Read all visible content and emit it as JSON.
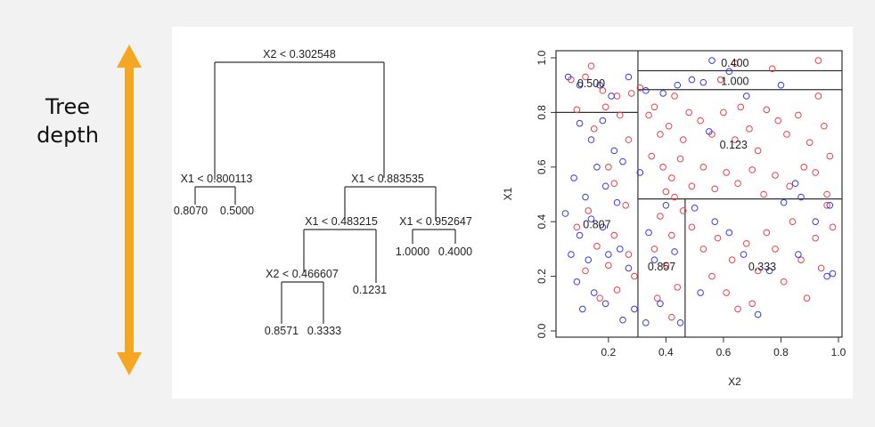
{
  "side_label": {
    "line1": "Tree",
    "line2": "depth"
  },
  "colors": {
    "arrow": "#f5a623",
    "class_red": "#e8414a",
    "class_blue": "#3b3bdc",
    "lines": "#333333"
  },
  "tree": {
    "nodes": [
      {
        "id": "root",
        "label": "X2 < 0.302548"
      },
      {
        "id": "left",
        "label": "X1 < 0.800113"
      },
      {
        "id": "right",
        "label": "X1 < 0.883535"
      },
      {
        "id": "rl",
        "label": "X1 < 0.483215"
      },
      {
        "id": "rr",
        "label": "X1 < 0.952647"
      },
      {
        "id": "rll",
        "label": "X2 < 0.466607"
      }
    ],
    "leaves": [
      {
        "id": "leaf-a",
        "label": "0.8070"
      },
      {
        "id": "leaf-b",
        "label": "0.5000"
      },
      {
        "id": "leaf-c",
        "label": "1.0000"
      },
      {
        "id": "leaf-d",
        "label": "0.4000"
      },
      {
        "id": "leaf-e",
        "label": "0.1231"
      },
      {
        "id": "leaf-f",
        "label": "0.8571"
      },
      {
        "id": "leaf-g",
        "label": "0.3333"
      }
    ]
  },
  "chart_data": {
    "type": "scatter",
    "xlabel": "X2",
    "ylabel": "X1",
    "xlim": [
      0.03,
      1.0
    ],
    "ylim": [
      0.0,
      1.0
    ],
    "x_ticks": [
      "0.2",
      "0.4",
      "0.6",
      "0.8",
      "1.0"
    ],
    "x_tick_values": [
      0.2,
      0.4,
      0.6,
      0.8,
      1.0
    ],
    "y_ticks": [
      "0.0",
      "0.2",
      "0.4",
      "0.6",
      "0.8",
      "1.0"
    ],
    "y_tick_values": [
      0.0,
      0.2,
      0.4,
      0.6,
      0.8,
      1.0
    ],
    "partitions": {
      "vertical": [
        {
          "x": 0.302548,
          "y0": 0.0,
          "y1": 1.0
        },
        {
          "x": 0.466607,
          "y0": 0.0,
          "y1": 0.483215
        }
      ],
      "horizontal": [
        {
          "y": 0.800113,
          "x0": 0.03,
          "x1": 0.302548
        },
        {
          "y": 0.483215,
          "x0": 0.302548,
          "x1": 1.0
        },
        {
          "y": 0.883535,
          "x0": 0.302548,
          "x1": 1.0
        },
        {
          "y": 0.952647,
          "x0": 0.302548,
          "x1": 1.0
        }
      ]
    },
    "region_labels": [
      {
        "text": "0.500",
        "x": 0.14,
        "y": 0.905
      },
      {
        "text": "0.400",
        "x": 0.64,
        "y": 0.98
      },
      {
        "text": "1.000",
        "x": 0.64,
        "y": 0.913
      },
      {
        "text": "0.123",
        "x": 0.635,
        "y": 0.68
      },
      {
        "text": "0.807",
        "x": 0.16,
        "y": 0.39
      },
      {
        "text": "0.857",
        "x": 0.385,
        "y": 0.235
      },
      {
        "text": "0.333",
        "x": 0.735,
        "y": 0.235
      }
    ],
    "series": [
      {
        "color": "red",
        "points": [
          [
            0.07,
            0.92
          ],
          [
            0.12,
            0.93
          ],
          [
            0.14,
            0.97
          ],
          [
            0.18,
            0.88
          ],
          [
            0.23,
            0.86
          ],
          [
            0.28,
            0.87
          ],
          [
            0.31,
            0.89
          ],
          [
            0.09,
            0.81
          ],
          [
            0.15,
            0.74
          ],
          [
            0.19,
            0.82
          ],
          [
            0.24,
            0.79
          ],
          [
            0.27,
            0.7
          ],
          [
            0.2,
            0.6
          ],
          [
            0.22,
            0.54
          ],
          [
            0.26,
            0.46
          ],
          [
            0.13,
            0.44
          ],
          [
            0.09,
            0.38
          ],
          [
            0.16,
            0.31
          ],
          [
            0.22,
            0.35
          ],
          [
            0.27,
            0.28
          ],
          [
            0.29,
            0.2
          ],
          [
            0.23,
            0.15
          ],
          [
            0.17,
            0.12
          ],
          [
            0.12,
            0.22
          ],
          [
            0.2,
            0.24
          ],
          [
            0.34,
            0.79
          ],
          [
            0.36,
            0.82
          ],
          [
            0.38,
            0.72
          ],
          [
            0.41,
            0.75
          ],
          [
            0.43,
            0.86
          ],
          [
            0.46,
            0.7
          ],
          [
            0.48,
            0.8
          ],
          [
            0.52,
            0.77
          ],
          [
            0.56,
            0.72
          ],
          [
            0.6,
            0.8
          ],
          [
            0.64,
            0.7
          ],
          [
            0.66,
            0.82
          ],
          [
            0.69,
            0.74
          ],
          [
            0.72,
            0.66
          ],
          [
            0.75,
            0.81
          ],
          [
            0.79,
            0.77
          ],
          [
            0.82,
            0.72
          ],
          [
            0.86,
            0.79
          ],
          [
            0.9,
            0.69
          ],
          [
            0.93,
            0.86
          ],
          [
            0.95,
            0.75
          ],
          [
            0.97,
            0.64
          ],
          [
            0.35,
            0.64
          ],
          [
            0.39,
            0.6
          ],
          [
            0.42,
            0.56
          ],
          [
            0.45,
            0.63
          ],
          [
            0.49,
            0.53
          ],
          [
            0.53,
            0.6
          ],
          [
            0.57,
            0.52
          ],
          [
            0.61,
            0.58
          ],
          [
            0.65,
            0.54
          ],
          [
            0.7,
            0.59
          ],
          [
            0.74,
            0.5
          ],
          [
            0.78,
            0.57
          ],
          [
            0.83,
            0.53
          ],
          [
            0.88,
            0.6
          ],
          [
            0.92,
            0.58
          ],
          [
            0.96,
            0.5
          ],
          [
            0.4,
            0.51
          ],
          [
            0.43,
            0.49
          ],
          [
            0.46,
            0.44
          ],
          [
            0.38,
            0.42
          ],
          [
            0.42,
            0.35
          ],
          [
            0.36,
            0.3
          ],
          [
            0.4,
            0.24
          ],
          [
            0.44,
            0.16
          ],
          [
            0.37,
            0.12
          ],
          [
            0.42,
            0.05
          ],
          [
            0.49,
            0.38
          ],
          [
            0.53,
            0.3
          ],
          [
            0.56,
            0.2
          ],
          [
            0.58,
            0.34
          ],
          [
            0.61,
            0.14
          ],
          [
            0.63,
            0.26
          ],
          [
            0.65,
            0.08
          ],
          [
            0.68,
            0.32
          ],
          [
            0.7,
            0.1
          ],
          [
            0.72,
            0.22
          ],
          [
            0.75,
            0.36
          ],
          [
            0.78,
            0.3
          ],
          [
            0.81,
            0.18
          ],
          [
            0.84,
            0.4
          ],
          [
            0.87,
            0.26
          ],
          [
            0.89,
            0.12
          ],
          [
            0.92,
            0.34
          ],
          [
            0.94,
            0.23
          ],
          [
            0.96,
            0.46
          ],
          [
            0.98,
            0.38
          ],
          [
            0.93,
            0.99
          ],
          [
            0.64,
            0.98
          ],
          [
            0.77,
            0.96
          ],
          [
            0.59,
            0.92
          ]
        ]
      },
      {
        "color": "blue",
        "points": [
          [
            0.06,
            0.93
          ],
          [
            0.1,
            0.9
          ],
          [
            0.17,
            0.9
          ],
          [
            0.21,
            0.86
          ],
          [
            0.27,
            0.93
          ],
          [
            0.1,
            0.76
          ],
          [
            0.14,
            0.7
          ],
          [
            0.18,
            0.77
          ],
          [
            0.22,
            0.66
          ],
          [
            0.25,
            0.62
          ],
          [
            0.08,
            0.56
          ],
          [
            0.12,
            0.49
          ],
          [
            0.16,
            0.6
          ],
          [
            0.19,
            0.53
          ],
          [
            0.23,
            0.47
          ],
          [
            0.05,
            0.43
          ],
          [
            0.1,
            0.35
          ],
          [
            0.14,
            0.41
          ],
          [
            0.18,
            0.38
          ],
          [
            0.2,
            0.28
          ],
          [
            0.24,
            0.3
          ],
          [
            0.27,
            0.23
          ],
          [
            0.13,
            0.26
          ],
          [
            0.09,
            0.18
          ],
          [
            0.15,
            0.14
          ],
          [
            0.11,
            0.08
          ],
          [
            0.19,
            0.1
          ],
          [
            0.25,
            0.04
          ],
          [
            0.29,
            0.08
          ],
          [
            0.07,
            0.28
          ],
          [
            0.33,
            0.88
          ],
          [
            0.39,
            0.87
          ],
          [
            0.44,
            0.9
          ],
          [
            0.49,
            0.92
          ],
          [
            0.53,
            0.91
          ],
          [
            0.56,
            0.99
          ],
          [
            0.62,
            0.95
          ],
          [
            0.68,
            0.86
          ],
          [
            0.8,
            0.9
          ],
          [
            0.55,
            0.73
          ],
          [
            0.87,
            0.49
          ],
          [
            0.92,
            0.4
          ],
          [
            0.97,
            0.46
          ],
          [
            0.81,
            0.47
          ],
          [
            0.85,
            0.54
          ],
          [
            0.34,
            0.36
          ],
          [
            0.36,
            0.26
          ],
          [
            0.4,
            0.46
          ],
          [
            0.43,
            0.29
          ],
          [
            0.38,
            0.1
          ],
          [
            0.45,
            0.03
          ],
          [
            0.5,
            0.45
          ],
          [
            0.52,
            0.14
          ],
          [
            0.57,
            0.4
          ],
          [
            0.62,
            0.36
          ],
          [
            0.67,
            0.28
          ],
          [
            0.72,
            0.06
          ],
          [
            0.76,
            0.22
          ],
          [
            0.86,
            0.28
          ],
          [
            0.96,
            0.2
          ],
          [
            0.98,
            0.21
          ],
          [
            0.33,
            0.03
          ],
          [
            0.31,
            0.58
          ]
        ]
      }
    ]
  }
}
